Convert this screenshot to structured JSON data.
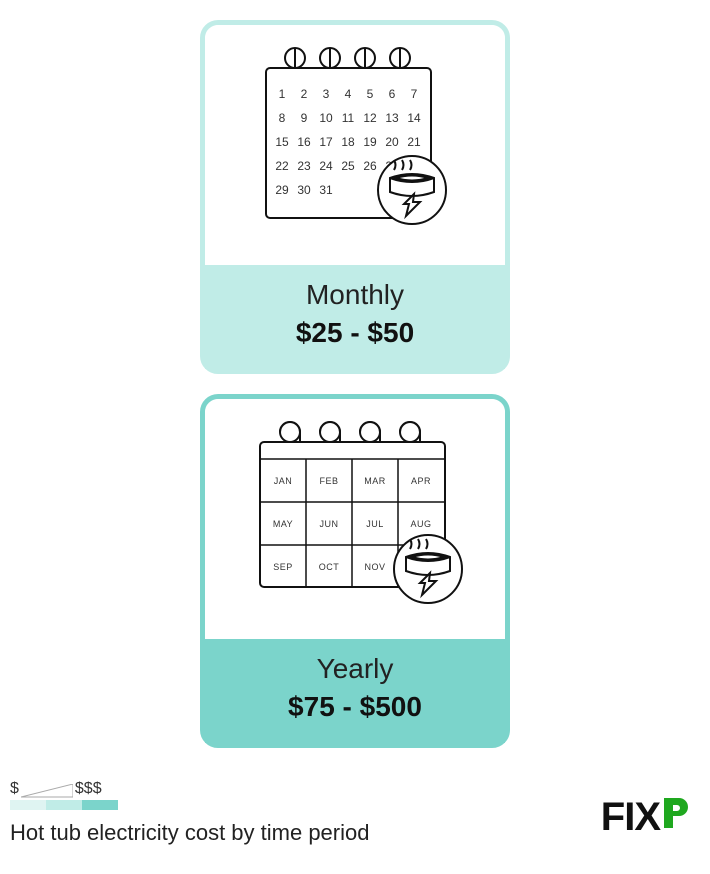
{
  "cards": [
    {
      "id": "monthly",
      "period_label": "Monthly",
      "cost_range": "$25 - $50",
      "border_color": "#c0ece7",
      "fill_color": "#c0ece7",
      "calendar_type": "days",
      "days": [
        1,
        2,
        3,
        4,
        5,
        6,
        7,
        8,
        9,
        10,
        11,
        12,
        13,
        14,
        15,
        16,
        17,
        18,
        19,
        20,
        21,
        22,
        23,
        24,
        25,
        26,
        27,
        28,
        29,
        30,
        31
      ],
      "columns": 7
    },
    {
      "id": "yearly",
      "period_label": "Yearly",
      "cost_range": "$75 - $500",
      "border_color": "#7bd4cb",
      "fill_color": "#7bd4cb",
      "calendar_type": "months",
      "months": [
        "JAN",
        "FEB",
        "MAR",
        "APR",
        "MAY",
        "JUN",
        "JUL",
        "AUG",
        "SEP",
        "OCT",
        "NOV",
        "DEC"
      ],
      "columns": 4
    }
  ],
  "legend": {
    "low_label": "$",
    "high_label": "$$$",
    "wedge_stroke": "#aaaaaa",
    "bar_colors": [
      "#dff4f2",
      "#c0ece7",
      "#7bd4cb"
    ],
    "bar_segment_width": 36
  },
  "caption": "Hot tub electricity cost by time period",
  "logo": {
    "text": "FIX",
    "accent_color": "#1fa81f"
  },
  "colors": {
    "background": "#ffffff",
    "text_primary": "#222222",
    "text_bold": "#111111",
    "stroke": "#111111"
  }
}
